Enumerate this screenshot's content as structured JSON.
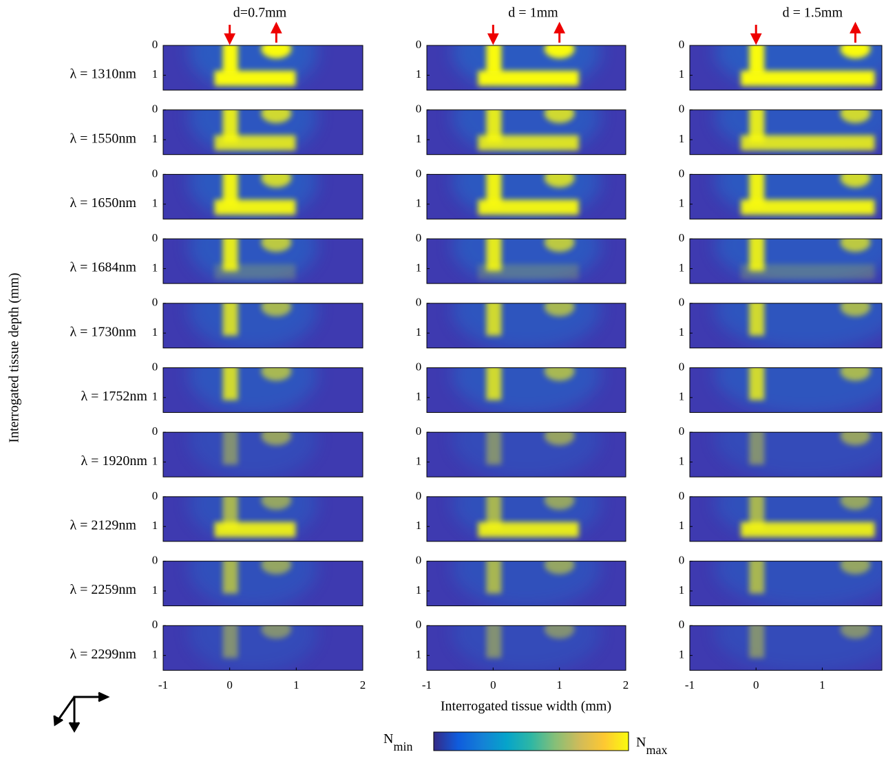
{
  "chart_data": {
    "type": "heatmap-grid",
    "columns": [
      {
        "title": "d=0.7mm",
        "d": 0.7,
        "xlim": [
          -1,
          2
        ],
        "xticks": [
          -1,
          0,
          1,
          2
        ]
      },
      {
        "title": "d = 1mm",
        "d": 1,
        "xlim": [
          -1,
          2
        ],
        "xticks": [
          -1,
          0,
          1,
          2
        ]
      },
      {
        "title": "d = 1.5mm",
        "d": 1.5,
        "xlim": [
          -1,
          1.9
        ],
        "xticks": [
          -1,
          0,
          1
        ]
      }
    ],
    "rows": [
      "λ = 1310nm",
      "λ = 1550nm",
      "λ = 1650nm",
      "λ = 1684nm",
      "λ = 1730nm",
      "λ = 1752nm",
      "λ = 1920nm",
      "λ = 2129nm",
      "λ = 2259nm",
      "λ = 2299nm"
    ],
    "ylim": [
      0,
      1.5
    ],
    "yticks": [
      0,
      1
    ],
    "xlabel": "Interrogated tissue width (mm)",
    "ylabel": "Interrogated tissue depth (mm)",
    "colorbar": {
      "min": {
        "main": "N",
        "sub": "min"
      },
      "max": {
        "main": "N",
        "sub": "max"
      }
    },
    "colormap": [
      "#352a87",
      "#0f5cdd",
      "#1481d6",
      "#06a4ca",
      "#2eb7a4",
      "#87bf77",
      "#d1bb59",
      "#fec832",
      "#f9fb0e"
    ]
  }
}
